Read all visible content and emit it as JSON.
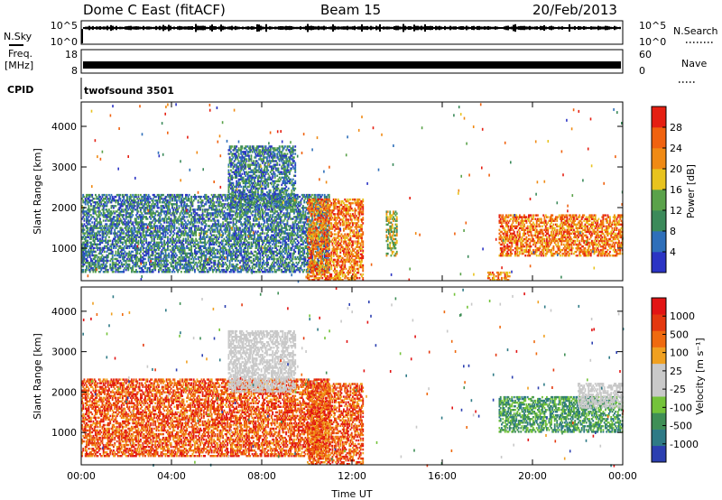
{
  "header": {
    "station": "Dome C East (fitACF)",
    "beam": "Beam 15",
    "date": "20/Feb/2013"
  },
  "left_labels": {
    "nsky": "N.Sky",
    "freq_line1": "Freq.",
    "freq_line2": "[MHz]",
    "cpid": "CPID"
  },
  "right_labels": {
    "nsearch": "N.Search",
    "nave": "Nave"
  },
  "cpid_value": "twofsound 3501",
  "colors": {
    "power_scale": [
      "#2b34c4",
      "#2e6fba",
      "#3b8a5a",
      "#5aa24a",
      "#e8c31e",
      "#f08a14",
      "#f0620f",
      "#e51f12"
    ],
    "velocity_scale": [
      "#2b3fb0",
      "#2e7a86",
      "#3f8f56",
      "#74c33a",
      "#c9c9c9",
      "#c9c9c9",
      "#f0a020",
      "#ef6a0f",
      "#e4380f",
      "#e21414"
    ]
  },
  "chart_data": [
    {
      "type": "line",
      "panel": "noise",
      "left_axis_ticks": [
        "10^5",
        "10^0"
      ],
      "right_axis_ticks": [
        "10^5",
        "10^0"
      ],
      "series": [
        {
          "name": "N.Sky"
        },
        {
          "name": "N.Search"
        }
      ]
    },
    {
      "type": "line",
      "panel": "frequency",
      "left_axis_ticks": [
        "18",
        "8"
      ],
      "right_axis_ticks": [
        "60",
        "0"
      ],
      "series": [
        {
          "name": "Freq."
        },
        {
          "name": "Nave"
        }
      ]
    },
    {
      "type": "heatmap",
      "panel": "power",
      "xlabel": "",
      "ylabel": "Slant Range [km]",
      "ylim": [
        200,
        4600
      ],
      "yticks": [
        "1000",
        "2000",
        "3000",
        "4000"
      ],
      "xlim": [
        0,
        24
      ],
      "xticks": [
        "00:00",
        "04:00",
        "08:00",
        "12:00",
        "16:00",
        "20:00",
        "00:00"
      ],
      "colorbar": {
        "label": "Power [dB]",
        "range": [
          0,
          32
        ],
        "ticks": [
          "4",
          "8",
          "12",
          "16",
          "20",
          "24",
          "28"
        ]
      },
      "echo_regions": [
        {
          "t": [
            0,
            11
          ],
          "range": [
            400,
            2300
          ],
          "level": "low-mid"
        },
        {
          "t": [
            6.5,
            9.5
          ],
          "range": [
            2000,
            3500
          ],
          "level": "low-mid"
        },
        {
          "t": [
            10,
            12.5
          ],
          "range": [
            200,
            2200
          ],
          "level": "high"
        },
        {
          "t": [
            13.5,
            14
          ],
          "range": [
            800,
            1900
          ],
          "level": "mid"
        },
        {
          "t": [
            18.5,
            24
          ],
          "range": [
            800,
            1800
          ],
          "level": "high"
        },
        {
          "t": [
            18,
            19
          ],
          "range": [
            200,
            400
          ],
          "level": "high"
        }
      ]
    },
    {
      "type": "heatmap",
      "panel": "velocity",
      "xlabel": "Time UT",
      "ylabel": "Slant Range [km]",
      "ylim": [
        200,
        4600
      ],
      "yticks": [
        "1000",
        "2000",
        "3000",
        "4000"
      ],
      "xlim": [
        0,
        24
      ],
      "xticks": [
        "00:00",
        "04:00",
        "08:00",
        "12:00",
        "16:00",
        "20:00",
        "00:00"
      ],
      "colorbar": {
        "label": "Velocity [m s⁻¹]",
        "ticks": [
          "1000",
          "500",
          "100",
          "25",
          "-25",
          "-100",
          "-500",
          "-1000"
        ]
      },
      "echo_regions": [
        {
          "t": [
            0,
            11
          ],
          "range": [
            400,
            2300
          ],
          "level": "negative"
        },
        {
          "t": [
            6.5,
            9.5
          ],
          "range": [
            2000,
            3500
          ],
          "level": "near-zero"
        },
        {
          "t": [
            10,
            12.5
          ],
          "range": [
            200,
            2200
          ],
          "level": "negative"
        },
        {
          "t": [
            18.5,
            24
          ],
          "range": [
            1000,
            1900
          ],
          "level": "positive"
        },
        {
          "t": [
            22,
            24
          ],
          "range": [
            1600,
            2200
          ],
          "level": "near-zero"
        }
      ]
    }
  ]
}
